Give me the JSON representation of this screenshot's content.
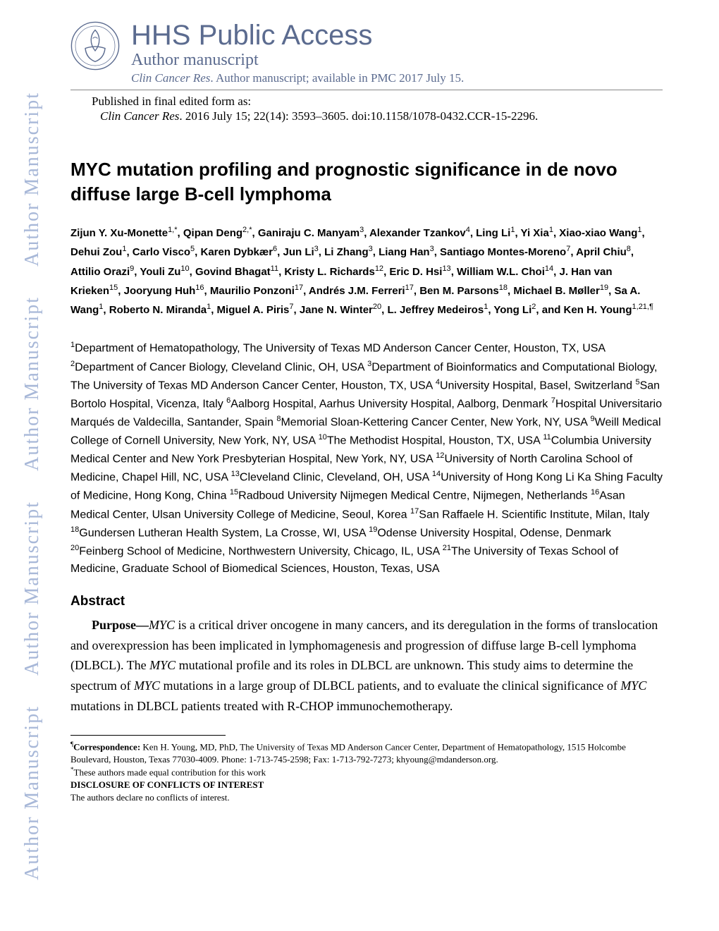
{
  "watermark_text": "Author Manuscript",
  "header": {
    "hhs_title": "HHS Public Access",
    "author_manuscript": "Author manuscript",
    "journal_italic": "Clin Cancer Res",
    "journal_rest": ". Author manuscript; available in PMC 2017 July 15.",
    "published_label": "Published in final edited form as:",
    "citation_italic": "Clin Cancer Res",
    "citation_rest": ". 2016 July 15; 22(14): 3593–3605. doi:10.1158/1078-0432.CCR-15-2296."
  },
  "title_line1": "MYC mutation profiling and prognostic significance in de novo",
  "title_line2": "diffuse large B-cell lymphoma",
  "authors_html": "Zijun Y. Xu-Monette<sup>1,*</sup>, Qipan Deng<sup>2,*</sup>, Ganiraju C. Manyam<sup>3</sup>, Alexander Tzankov<sup>4</sup>, Ling Li<sup>1</sup>, Yi Xia<sup>1</sup>, Xiao-xiao Wang<sup>1</sup>, Dehui Zou<sup>1</sup>, Carlo Visco<sup>5</sup>, Karen Dybkær<sup>6</sup>, Jun Li<sup>3</sup>, Li Zhang<sup>3</sup>, Liang Han<sup>3</sup>, Santiago Montes-Moreno<sup>7</sup>, April Chiu<sup>8</sup>, Attilio Orazi<sup>9</sup>, Youli Zu<sup>10</sup>, Govind Bhagat<sup>11</sup>, Kristy L. Richards<sup>12</sup>, Eric D. Hsi<sup>13</sup>, William W.L. Choi<sup>14</sup>, J. Han van Krieken<sup>15</sup>, Jooryung Huh<sup>16</sup>, Maurilio Ponzoni<sup>17</sup>, Andrés J.M. Ferreri<sup>17</sup>, Ben M. Parsons<sup>18</sup>, Michael B. Møller<sup>19</sup>, Sa A. Wang<sup>1</sup>, Roberto N. Miranda<sup>1</sup>, Miguel A. Piris<sup>7</sup>, Jane N. Winter<sup>20</sup>, L. Jeffrey Medeiros<sup>1</sup>, Yong Li<sup>2</sup>, and Ken H. Young<sup>1,21,¶</sup>",
  "affiliations_html": "<sup>1</sup>Department of Hematopathology, The University of Texas MD Anderson Cancer Center, Houston, TX, USA <sup>2</sup>Department of Cancer Biology, Cleveland Clinic, OH, USA <sup>3</sup>Department of Bioinformatics and Computational Biology, The University of Texas MD Anderson Cancer Center, Houston, TX, USA <sup>4</sup>University Hospital, Basel, Switzerland <sup>5</sup>San Bortolo Hospital, Vicenza, Italy <sup>6</sup>Aalborg Hospital, Aarhus University Hospital, Aalborg, Denmark <sup>7</sup>Hospital Universitario Marqués de Valdecilla, Santander, Spain <sup>8</sup>Memorial Sloan-Kettering Cancer Center, New York, NY, USA <sup>9</sup>Weill Medical College of Cornell University, New York, NY, USA <sup>10</sup>The Methodist Hospital, Houston, TX, USA <sup>11</sup>Columbia University Medical Center and New York Presbyterian Hospital, New York, NY, USA <sup>12</sup>University of North Carolina School of Medicine, Chapel Hill, NC, USA <sup>13</sup>Cleveland Clinic, Cleveland, OH, USA <sup>14</sup>University of Hong Kong Li Ka Shing Faculty of Medicine, Hong Kong, China <sup>15</sup>Radboud University Nijmegen Medical Centre, Nijmegen, Netherlands <sup>16</sup>Asan Medical Center, Ulsan University College of Medicine, Seoul, Korea <sup>17</sup>San Raffaele H. Scientific Institute, Milan, Italy <sup>18</sup>Gundersen Lutheran Health System, La Crosse, WI, USA <sup>19</sup>Odense University Hospital, Odense, Denmark <sup>20</sup>Feinberg School of Medicine, Northwestern University, Chicago, IL, USA <sup>21</sup>The University of Texas School of Medicine, Graduate School of Biomedical Sciences, Houston, Texas, USA",
  "abstract": {
    "heading": "Abstract",
    "purpose_label": "Purpose—",
    "purpose_html": "<span class=\"italic\">MYC</span> is a critical driver oncogene in many cancers, and its deregulation in the forms of translocation and overexpression has been implicated in lymphomagenesis and progression of diffuse large B-cell lymphoma (DLBCL). The <span class=\"italic\">MYC</span> mutational profile and its roles in DLBCL are unknown. This study aims to determine the spectrum of <span class=\"italic\">MYC</span> mutations in a large group of DLBCL patients, and to evaluate the clinical significance of <span class=\"italic\">MYC</span> mutations in DLBCL patients treated with R-CHOP immunochemotherapy."
  },
  "footnotes": {
    "corr_symbol": "¶",
    "corr_label": "Correspondence:",
    "corr_text": " Ken H. Young, MD, PhD, The University of Texas MD Anderson Cancer Center, Department of Hematopathology, 1515 Holcombe Boulevard, Houston, Texas 77030-4009. Phone: 1-713-745-2598; Fax: 1-713-792-7273; khyoung@mdanderson.org.",
    "equal_symbol": "*",
    "equal_text": "These authors made equal contribution for this work",
    "disclosure_heading": "DISCLOSURE OF CONFLICTS OF INTEREST",
    "disclosure_text": "The authors declare no conflicts of interest."
  },
  "colors": {
    "watermark": "#a8b8d8",
    "header_text": "#5b6b8f",
    "body_text": "#000000",
    "background": "#ffffff"
  }
}
